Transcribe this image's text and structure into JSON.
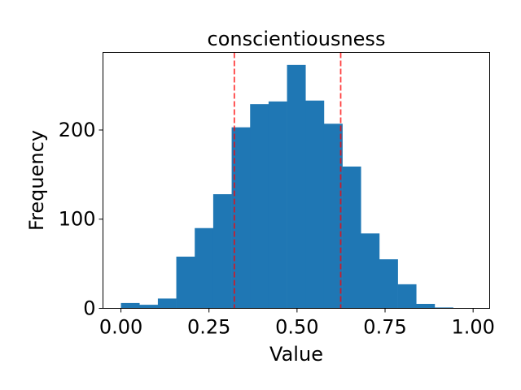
{
  "chart_data": {
    "type": "bar",
    "title": "conscientiousness",
    "xlabel": "Value",
    "ylabel": "Frequency",
    "bin_start": 0.0,
    "bin_width": 0.0524,
    "values": [
      6,
      4,
      11,
      58,
      90,
      128,
      203,
      229,
      232,
      273,
      233,
      207,
      159,
      84,
      55,
      27,
      5,
      1
    ],
    "xlim": [
      -0.051,
      1.047
    ],
    "ylim": [
      0,
      287
    ],
    "xticks": [
      0.0,
      0.25,
      0.5,
      0.75,
      1.0
    ],
    "xtick_labels": [
      "0.00",
      "0.25",
      "0.50",
      "0.75",
      "1.00"
    ],
    "yticks": [
      0,
      100,
      200
    ],
    "ytick_labels": [
      "0",
      "100",
      "200"
    ],
    "vlines": [
      0.322,
      0.624
    ],
    "vline_style": "dashed",
    "grid": false,
    "bar_color": "#1f77b4",
    "vline_color": "#ff0000"
  }
}
